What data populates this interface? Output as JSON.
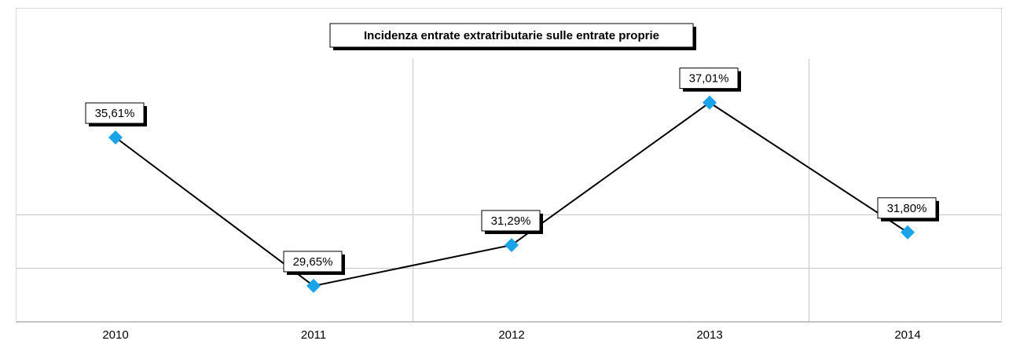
{
  "chart_data": {
    "type": "line",
    "title": "Incidenza entrate extratributarie sulle entrate proprie",
    "categories": [
      "2010",
      "2011",
      "2012",
      "2013",
      "2014"
    ],
    "series": [
      {
        "values": [
          35.61,
          29.65,
          31.29,
          37.01,
          31.8
        ],
        "labels": [
          "35,61%",
          "29,65%",
          "31,29%",
          "37,01%",
          "31,80%"
        ]
      }
    ],
    "xlabel": "",
    "ylabel": "",
    "grid": true,
    "colors": {
      "line": "#000000",
      "marker": "#1aa3e8",
      "grid": "#c8c8c8"
    }
  }
}
